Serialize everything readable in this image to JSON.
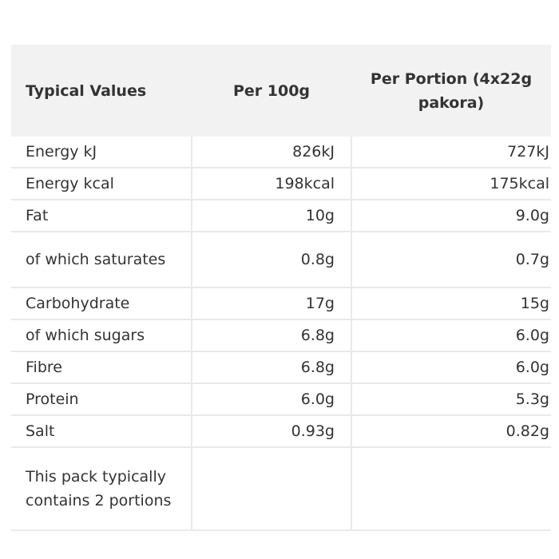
{
  "table": {
    "headers": [
      "Typical Values",
      "Per 100g",
      "Per Portion (4x22g pakora)"
    ],
    "rows": [
      {
        "label": "Energy kJ",
        "per100g": "826kJ",
        "perPortion": "727kJ"
      },
      {
        "label": "Energy kcal",
        "per100g": "198kcal",
        "perPortion": "175kcal"
      },
      {
        "label": "Fat",
        "per100g": "10g",
        "perPortion": "9.0g"
      },
      {
        "label": "of which saturates",
        "per100g": "0.8g",
        "perPortion": "0.7g"
      },
      {
        "label": "Carbohydrate",
        "per100g": "17g",
        "perPortion": "15g"
      },
      {
        "label": "of which sugars",
        "per100g": "6.8g",
        "perPortion": "6.0g"
      },
      {
        "label": "Fibre",
        "per100g": "6.8g",
        "perPortion": "6.0g"
      },
      {
        "label": "Protein",
        "per100g": "6.0g",
        "perPortion": "5.3g"
      },
      {
        "label": "Salt",
        "per100g": "0.93g",
        "perPortion": "0.82g"
      },
      {
        "label": "This pack typically contains 2 portions",
        "per100g": "",
        "perPortion": ""
      }
    ]
  }
}
